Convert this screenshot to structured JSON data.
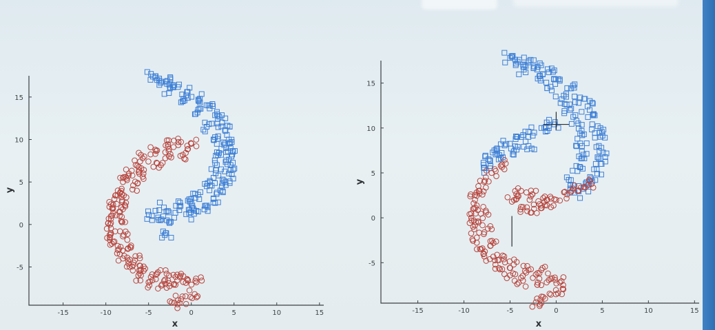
{
  "colors": {
    "class_a": "#3d7fd6",
    "class_b": "#b8443c",
    "axis": "#3a3f44"
  },
  "chart_data": [
    {
      "type": "scatter",
      "title": "",
      "xlabel": "x",
      "ylabel": "y",
      "xlim": [
        -19,
        15.5
      ],
      "ylim": [
        -9.5,
        17.5
      ],
      "xticks": [
        -15,
        -10,
        -5,
        0,
        5,
        10,
        15
      ],
      "yticks": [
        -5,
        0,
        5,
        10,
        15
      ],
      "grid": false,
      "legend": "none",
      "series": [
        {
          "marker": "square",
          "color": "#3d7fd6",
          "shape": "spiral arm",
          "points": [
            [
              -4.5,
              17.4
            ],
            [
              -4.0,
              17.0
            ],
            [
              -3.0,
              16.8
            ],
            [
              -2.0,
              16.4
            ],
            [
              -0.5,
              15.6
            ],
            [
              1.0,
              14.8
            ],
            [
              2.0,
              14.0
            ],
            [
              3.0,
              13.0
            ],
            [
              3.6,
              12.0
            ],
            [
              4.0,
              11.0
            ],
            [
              4.4,
              10.0
            ],
            [
              4.6,
              9.0
            ],
            [
              4.7,
              8.0
            ],
            [
              4.6,
              7.0
            ],
            [
              4.4,
              6.0
            ],
            [
              4.0,
              5.0
            ],
            [
              3.4,
              4.0
            ],
            [
              2.6,
              3.0
            ],
            [
              1.6,
              2.2
            ],
            [
              0.6,
              1.6
            ],
            [
              -0.6,
              1.2
            ],
            [
              -2.0,
              0.8
            ],
            [
              -3.5,
              0.6
            ],
            [
              -4.6,
              1.0
            ],
            [
              -3.0,
              -1.0
            ],
            [
              -2.5,
              16.0
            ],
            [
              -1.0,
              14.5
            ],
            [
              0.5,
              13.0
            ],
            [
              1.8,
              11.5
            ],
            [
              2.6,
              10.0
            ],
            [
              3.0,
              8.5
            ],
            [
              3.0,
              7.0
            ],
            [
              2.6,
              5.5
            ],
            [
              1.8,
              4.5
            ],
            [
              0.8,
              3.5
            ],
            [
              -0.4,
              2.8
            ],
            [
              -1.8,
              2.2
            ],
            [
              -3.2,
              2.0
            ]
          ]
        },
        {
          "marker": "circle",
          "color": "#b8443c",
          "shape": "spiral arm",
          "points": [
            [
              0.0,
              9.5
            ],
            [
              -1.5,
              9.7
            ],
            [
              -3.0,
              9.3
            ],
            [
              -4.2,
              8.8
            ],
            [
              -5.5,
              8.0
            ],
            [
              -6.5,
              7.0
            ],
            [
              -7.3,
              6.0
            ],
            [
              -8.0,
              5.0
            ],
            [
              -8.6,
              4.0
            ],
            [
              -9.0,
              3.0
            ],
            [
              -9.2,
              2.0
            ],
            [
              -9.4,
              1.0
            ],
            [
              -9.5,
              0.0
            ],
            [
              -9.4,
              -1.0
            ],
            [
              -9.0,
              -2.0
            ],
            [
              -8.6,
              -3.0
            ],
            [
              -8.0,
              -4.0
            ],
            [
              -7.2,
              -5.0
            ],
            [
              -6.2,
              -6.0
            ],
            [
              -5.0,
              -6.8
            ],
            [
              -3.5,
              -7.2
            ],
            [
              -2.0,
              -7.0
            ],
            [
              -0.4,
              -6.6
            ],
            [
              0.6,
              -6.8
            ],
            [
              0.4,
              -8.2
            ],
            [
              -1.2,
              -8.8
            ],
            [
              -2.0,
              -9.2
            ],
            [
              -1.0,
              8.2
            ],
            [
              -2.6,
              8.0
            ],
            [
              -4.0,
              7.2
            ],
            [
              -5.6,
              6.0
            ],
            [
              -6.8,
              4.6
            ],
            [
              -7.6,
              3.2
            ],
            [
              -8.0,
              1.8
            ],
            [
              -8.2,
              0.4
            ],
            [
              -8.0,
              -1.4
            ],
            [
              -7.4,
              -2.8
            ],
            [
              -6.6,
              -4.2
            ],
            [
              -5.4,
              -5.2
            ],
            [
              -4.0,
              -5.8
            ],
            [
              -2.6,
              -6.0
            ],
            [
              -1.2,
              -5.8
            ]
          ]
        }
      ]
    },
    {
      "type": "scatter",
      "title": "",
      "xlabel": "x",
      "ylabel": "y",
      "xlim": [
        -19,
        15.5
      ],
      "ylim": [
        -9.5,
        17.5
      ],
      "xticks": [
        -15,
        -10,
        -5,
        0,
        5,
        10,
        15
      ],
      "yticks": [
        -5,
        0,
        5,
        10,
        15
      ],
      "grid": false,
      "legend": "none",
      "series": [
        {
          "marker": "square",
          "color": "#3d7fd6",
          "shape": "spiral arm with inner branch",
          "points": [
            [
              -5.0,
              17.8
            ],
            [
              -4.0,
              17.6
            ],
            [
              -3.0,
              17.3
            ],
            [
              -2.0,
              16.8
            ],
            [
              -0.8,
              16.2
            ],
            [
              0.4,
              15.4
            ],
            [
              1.6,
              14.4
            ],
            [
              2.6,
              13.4
            ],
            [
              3.4,
              12.4
            ],
            [
              4.0,
              11.4
            ],
            [
              4.5,
              10.2
            ],
            [
              4.8,
              9.0
            ],
            [
              4.9,
              7.8
            ],
            [
              4.8,
              6.6
            ],
            [
              4.4,
              5.4
            ],
            [
              3.8,
              4.4
            ],
            [
              3.0,
              3.4
            ],
            [
              2.0,
              2.8
            ],
            [
              -3.5,
              16.5
            ],
            [
              -2.0,
              15.5
            ],
            [
              -0.6,
              14.6
            ],
            [
              0.6,
              13.2
            ],
            [
              1.5,
              12.0
            ],
            [
              2.2,
              10.8
            ],
            [
              2.6,
              9.4
            ],
            [
              2.8,
              8.0
            ],
            [
              2.7,
              6.6
            ],
            [
              2.3,
              5.2
            ],
            [
              1.6,
              4.2
            ],
            [
              -0.2,
              10.4
            ],
            [
              -1.6,
              10.0
            ],
            [
              -3.0,
              9.6
            ],
            [
              -4.2,
              9.0
            ],
            [
              -5.4,
              8.2
            ],
            [
              -6.4,
              7.4
            ],
            [
              -7.2,
              6.4
            ],
            [
              -7.8,
              5.6
            ],
            [
              -3.0,
              8.0
            ],
            [
              -4.6,
              7.4
            ],
            [
              -6.0,
              6.6
            ]
          ]
        },
        {
          "marker": "circle",
          "color": "#b8443c",
          "shape": "spiral arm with inner branch",
          "points": [
            [
              -6.0,
              5.8
            ],
            [
              -7.0,
              5.0
            ],
            [
              -7.8,
              4.0
            ],
            [
              -8.4,
              3.0
            ],
            [
              -8.8,
              2.0
            ],
            [
              -9.0,
              1.0
            ],
            [
              -9.2,
              0.0
            ],
            [
              -9.0,
              -1.0
            ],
            [
              -8.6,
              -2.2
            ],
            [
              -8.0,
              -3.4
            ],
            [
              -7.2,
              -4.6
            ],
            [
              -6.2,
              -5.6
            ],
            [
              -5.0,
              -6.4
            ],
            [
              -3.6,
              -7.0
            ],
            [
              -2.0,
              -7.2
            ],
            [
              -0.6,
              -6.8
            ],
            [
              0.4,
              -7.2
            ],
            [
              0.2,
              -8.4
            ],
            [
              -1.2,
              -9.0
            ],
            [
              -2.2,
              -9.4
            ],
            [
              -7.6,
              0.6
            ],
            [
              -7.4,
              -1.2
            ],
            [
              -6.8,
              -2.8
            ],
            [
              -5.8,
              -4.2
            ],
            [
              -4.6,
              -5.2
            ],
            [
              -3.0,
              -5.8
            ],
            [
              -1.6,
              -5.8
            ],
            [
              -4.8,
              1.8
            ],
            [
              -3.6,
              1.2
            ],
            [
              -2.4,
              1.0
            ],
            [
              -1.2,
              1.4
            ],
            [
              0.0,
              2.0
            ],
            [
              1.2,
              2.6
            ],
            [
              2.4,
              3.0
            ],
            [
              3.4,
              3.6
            ],
            [
              -3.8,
              3.0
            ],
            [
              -2.6,
              2.6
            ],
            [
              -1.4,
              2.2
            ]
          ]
        }
      ]
    }
  ]
}
